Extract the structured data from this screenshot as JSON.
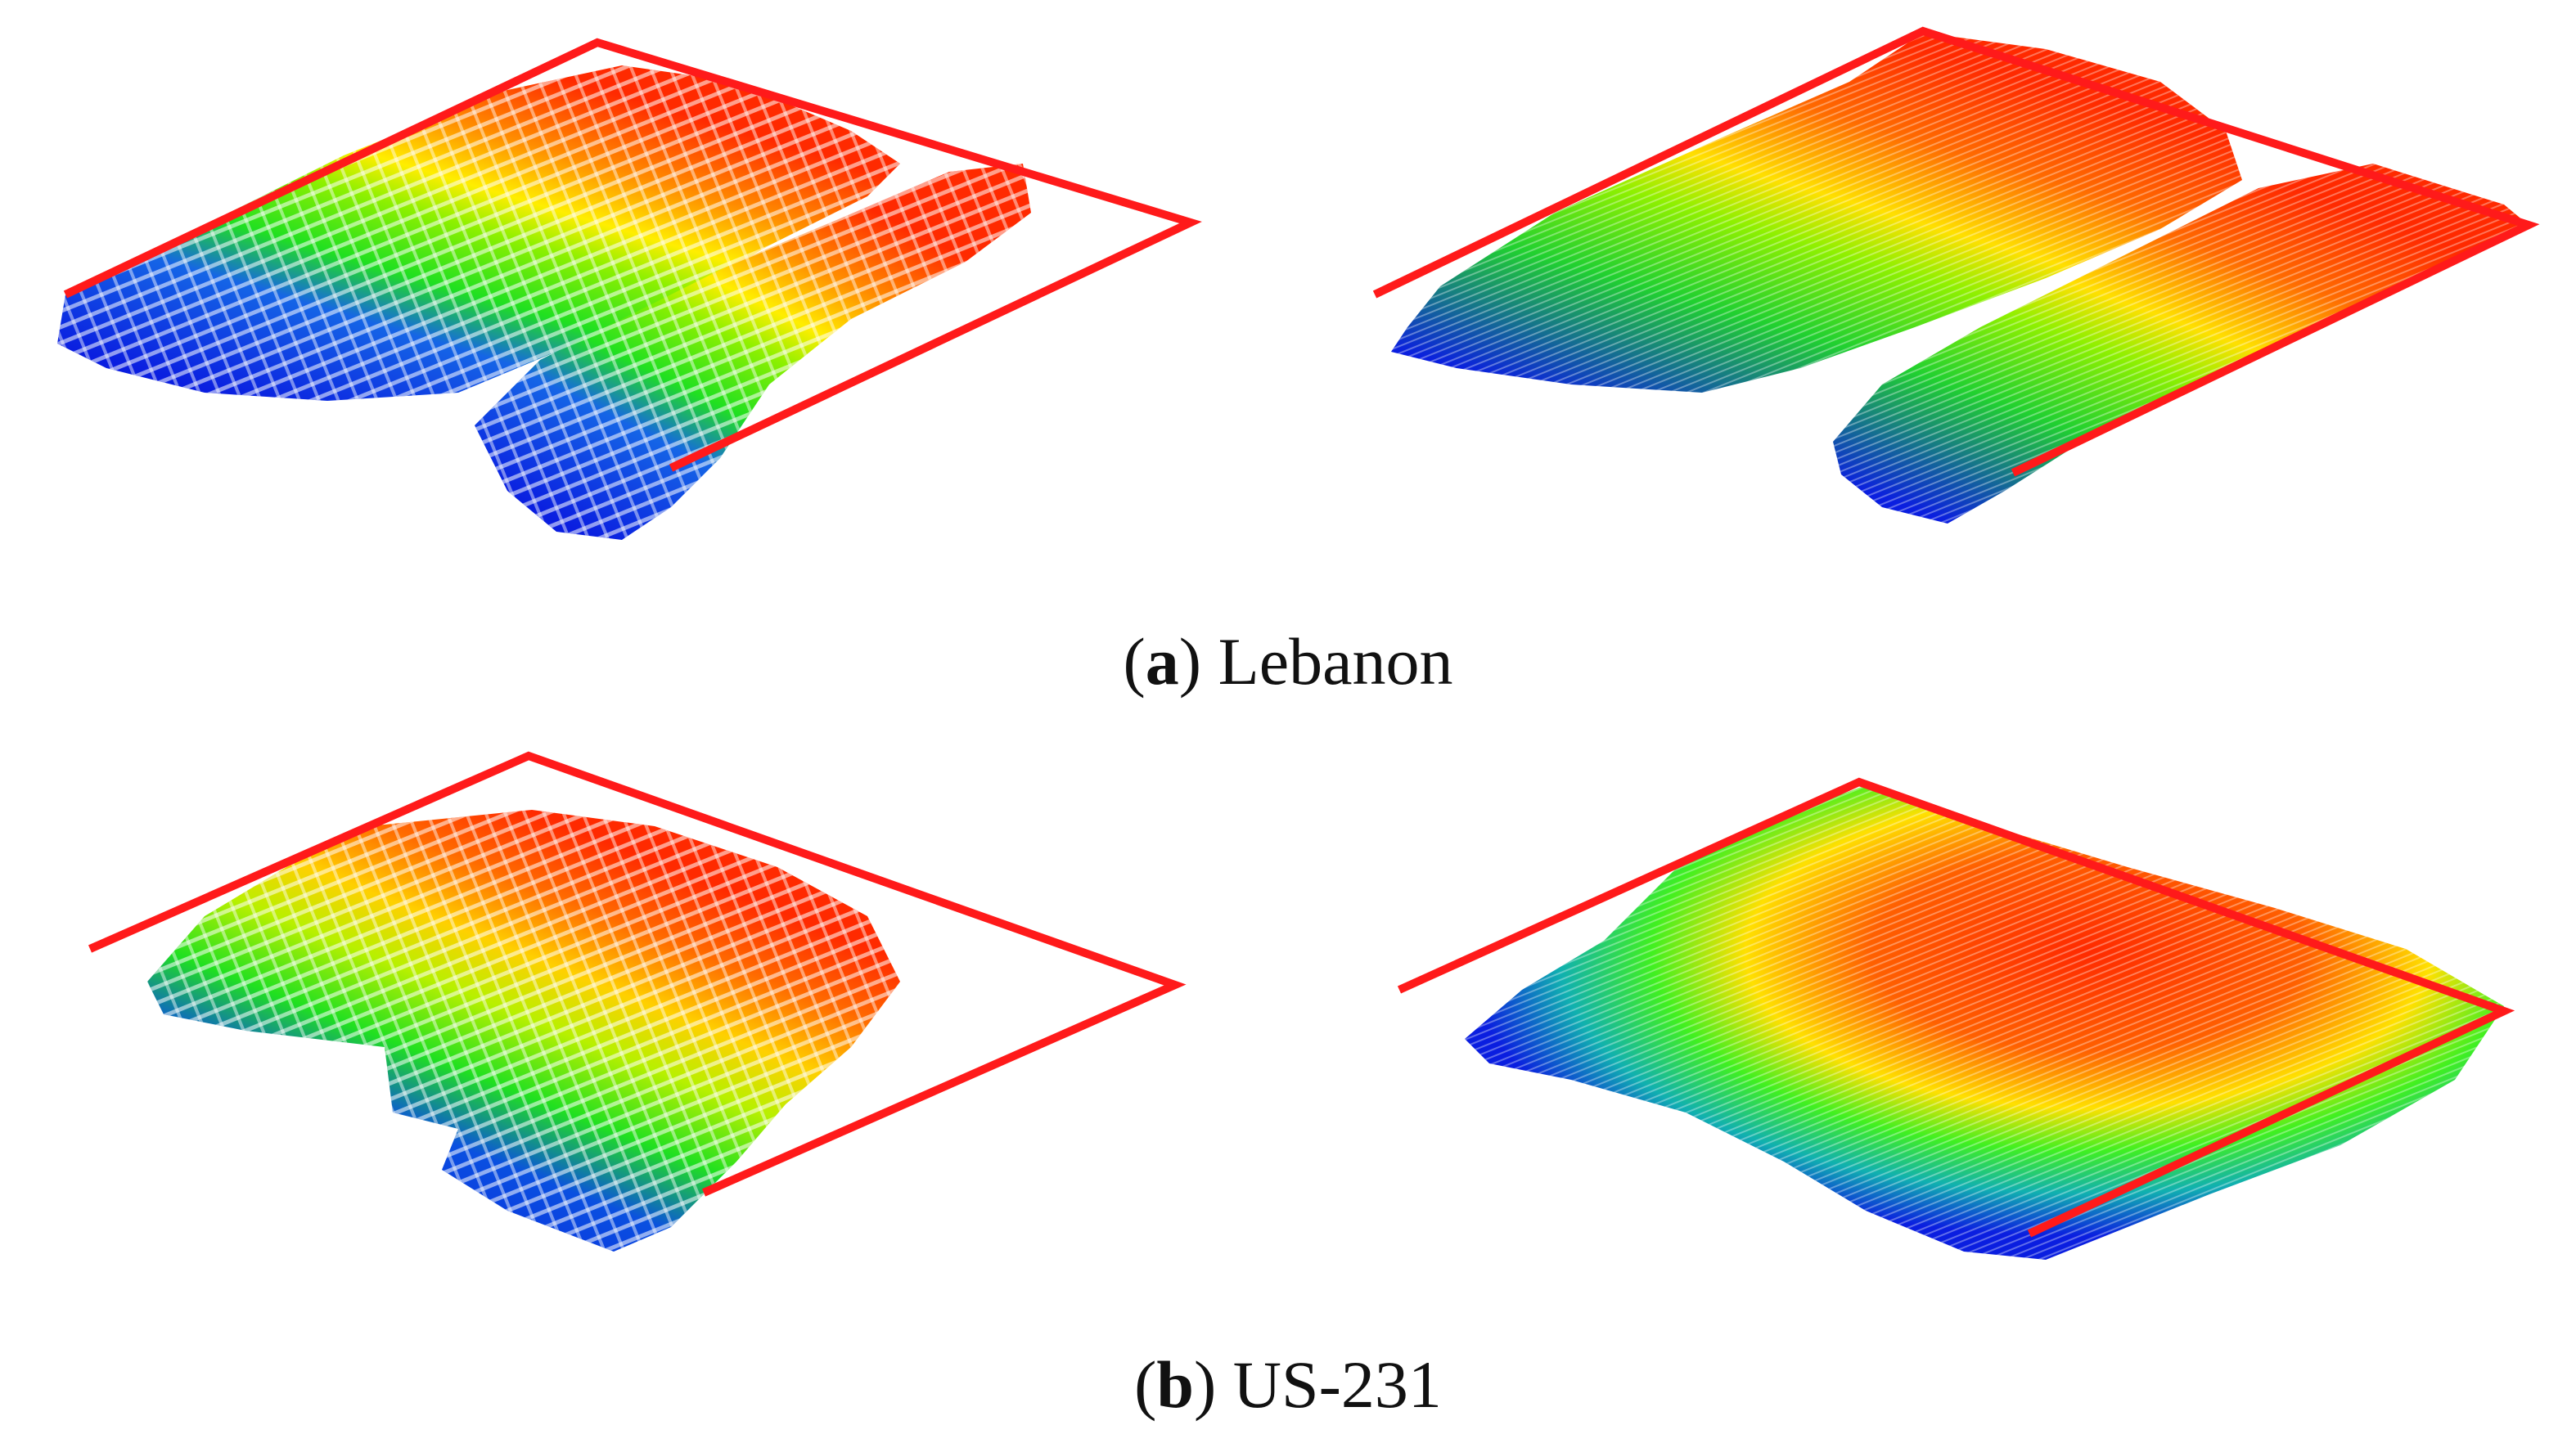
{
  "figure": {
    "captions": [
      {
        "label": "a",
        "text": "Lebanon"
      },
      {
        "label": "b",
        "text": "US-231"
      }
    ],
    "panels": [
      {
        "row": "a",
        "view": "point-cloud"
      },
      {
        "row": "a",
        "view": "surface"
      },
      {
        "row": "b",
        "view": "point-cloud"
      },
      {
        "row": "b",
        "view": "surface"
      }
    ],
    "colors": {
      "boundary": "#ff1a1a",
      "low": "#0a1ee0",
      "mid": "#20e020",
      "high": "#ff2a00",
      "mid_high": "#ffee00"
    }
  }
}
